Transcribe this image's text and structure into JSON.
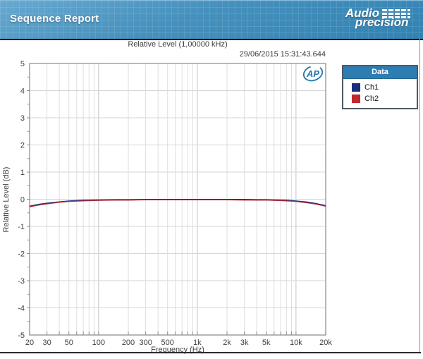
{
  "header": {
    "title": "Sequence Report",
    "brand_line1": "Audio",
    "brand_line2": "precision"
  },
  "report": {
    "chart_title": "Relative Level (1,00000 kHz)",
    "timestamp": "29/06/2015 15:31:43.644"
  },
  "legend": {
    "title": "Data",
    "items": [
      {
        "label": "Ch1",
        "color": "#1b2f7e"
      },
      {
        "label": "Ch2",
        "color": "#c1272d"
      }
    ]
  },
  "watermark": {
    "text": "AP",
    "color": "#2575ad"
  },
  "chart_data": {
    "type": "line",
    "title": "Relative Level (1,00000 kHz)",
    "xlabel": "Frequency (Hz)",
    "ylabel": "Relative Level (dB)",
    "x_scale": "log",
    "xlim": [
      20,
      20000
    ],
    "ylim": [
      -5,
      5
    ],
    "grid": true,
    "legend_position": "outside-right",
    "x_tick_values": [
      20,
      30,
      50,
      100,
      200,
      300,
      500,
      1000,
      2000,
      3000,
      5000,
      10000,
      20000
    ],
    "x_tick_labels": [
      "20",
      "30",
      "50",
      "100",
      "200",
      "300",
      "500",
      "1k",
      "2k",
      "3k",
      "5k",
      "10k",
      "20k"
    ],
    "x_gridlines": [
      20,
      30,
      40,
      50,
      60,
      70,
      80,
      90,
      100,
      200,
      300,
      400,
      500,
      600,
      700,
      800,
      900,
      1000,
      2000,
      3000,
      4000,
      5000,
      6000,
      7000,
      8000,
      9000,
      10000,
      20000
    ],
    "y_ticks": [
      -5,
      -4,
      -3,
      -2,
      -1,
      0,
      1,
      2,
      3,
      4,
      5
    ],
    "y_minor_step": 0.5,
    "x": [
      20,
      25,
      30,
      40,
      50,
      70,
      100,
      150,
      200,
      300,
      500,
      700,
      1000,
      1500,
      2000,
      3000,
      4000,
      5000,
      6000,
      8000,
      10000,
      13000,
      16000,
      20000
    ],
    "series": [
      {
        "name": "Ch1",
        "color": "#1b2f7e",
        "values": [
          -0.26,
          -0.19,
          -0.15,
          -0.1,
          -0.07,
          -0.04,
          -0.03,
          -0.02,
          -0.02,
          -0.01,
          -0.01,
          -0.01,
          -0.01,
          -0.01,
          -0.01,
          -0.01,
          -0.02,
          -0.02,
          -0.03,
          -0.04,
          -0.07,
          -0.11,
          -0.16,
          -0.24
        ]
      },
      {
        "name": "Ch2",
        "color": "#c1272d",
        "values": [
          -0.27,
          -0.2,
          -0.16,
          -0.1,
          -0.07,
          -0.05,
          -0.03,
          -0.02,
          -0.02,
          -0.01,
          -0.01,
          -0.01,
          -0.01,
          -0.01,
          -0.01,
          -0.02,
          -0.02,
          -0.02,
          -0.03,
          -0.05,
          -0.07,
          -0.12,
          -0.17,
          -0.25
        ]
      }
    ]
  }
}
